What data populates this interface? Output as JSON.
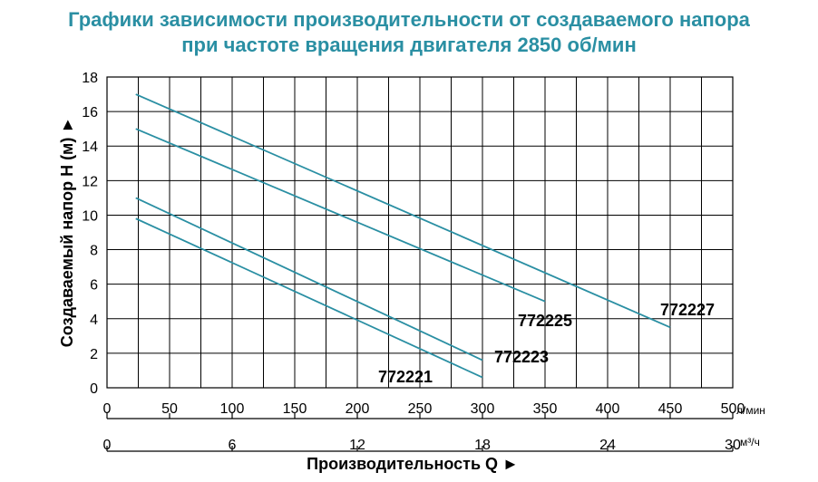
{
  "title_line1": "Графики зависимости производительности от создаваемого напора",
  "title_line2": "при частоте вращения двигателя 2850 об/мин",
  "colors": {
    "title": "#2a8fa3",
    "series": "#2a8fa3",
    "grid": "#000000"
  },
  "chart_data": {
    "type": "line",
    "ylabel": "Создаваемый напор H (м) ►",
    "xlabel": "Производительность Q ►",
    "ylim": [
      0,
      18
    ],
    "yticks": [
      "0",
      "2",
      "4",
      "6",
      "8",
      "10",
      "12",
      "14",
      "16",
      "18"
    ],
    "x_lpm": {
      "unit": "л/мин",
      "lim": [
        0,
        500
      ],
      "ticks": [
        "0",
        "50",
        "100",
        "150",
        "200",
        "250",
        "300",
        "350",
        "400",
        "450",
        "500"
      ]
    },
    "x_m3h": {
      "unit": "м³/ч",
      "lim": [
        0,
        30
      ],
      "ticks": [
        "0",
        "6",
        "12",
        "18",
        "24",
        "30"
      ]
    },
    "grid": true,
    "series": [
      {
        "name": "772221",
        "x": [
          23,
          300
        ],
        "y": [
          9.8,
          0.6
        ]
      },
      {
        "name": "772223",
        "x": [
          23,
          300
        ],
        "y": [
          11.0,
          1.6
        ]
      },
      {
        "name": "772225",
        "x": [
          23,
          350
        ],
        "y": [
          15.0,
          5.0
        ]
      },
      {
        "name": "772227",
        "x": [
          23,
          450
        ],
        "y": [
          17.0,
          3.5
        ]
      }
    ]
  }
}
